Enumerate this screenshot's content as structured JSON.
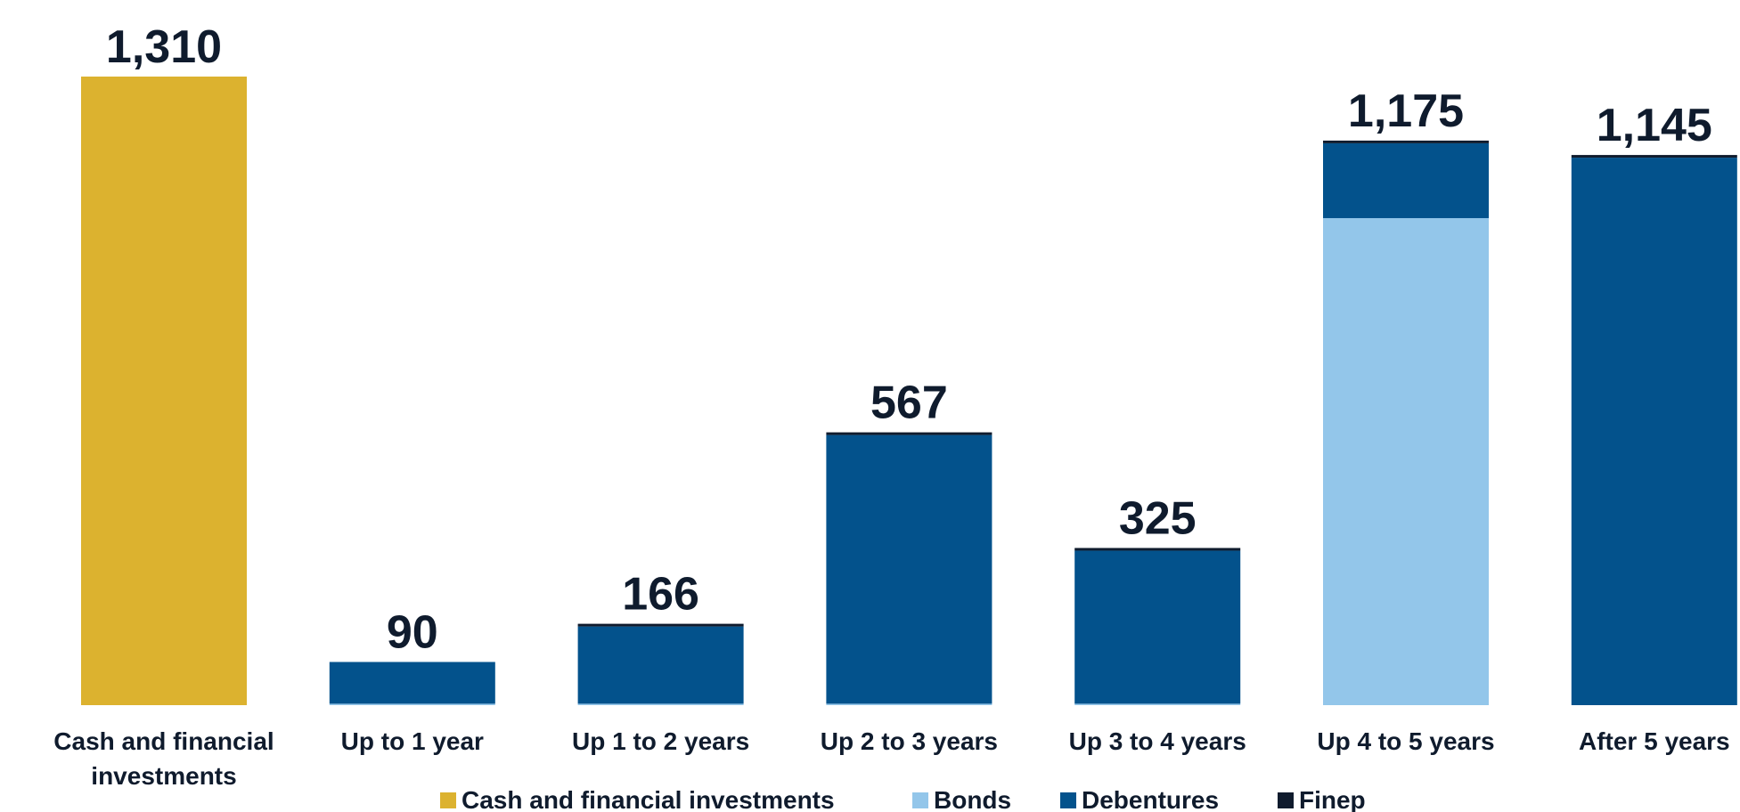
{
  "chart_data": {
    "type": "bar",
    "stacked": true,
    "categories": [
      [
        "Cash and financial",
        "investments"
      ],
      [
        "Up to 1 year"
      ],
      [
        "Up 1 to 2 years"
      ],
      [
        "Up 2 to 3 years"
      ],
      [
        "Up 3 to 4 years"
      ],
      [
        "Up 4 to 5 years"
      ],
      [
        "After 5 years"
      ]
    ],
    "totals": [
      "1,310",
      "90",
      "166",
      "567",
      "325",
      "1,175",
      "1,145"
    ],
    "series": [
      {
        "name": "Cash and financial investments",
        "color": "#dcb22f",
        "values": [
          1310,
          0,
          0,
          0,
          0,
          0,
          0
        ]
      },
      {
        "name": "Bonds",
        "color": "#93c6ea",
        "values": [
          0,
          3,
          3,
          3,
          3,
          1015,
          0
        ]
      },
      {
        "name": "Debentures",
        "color": "#03528c",
        "values": [
          0,
          87,
          161,
          560,
          319,
          156,
          1141
        ]
      },
      {
        "name": "Finep",
        "color": "#0f1b2d",
        "values": [
          0,
          0,
          2,
          4,
          3,
          4,
          4
        ]
      }
    ],
    "title": "",
    "xlabel": "",
    "ylabel": "",
    "ylim": [
      0,
      1310
    ],
    "grid": false,
    "legend": "bottom"
  }
}
